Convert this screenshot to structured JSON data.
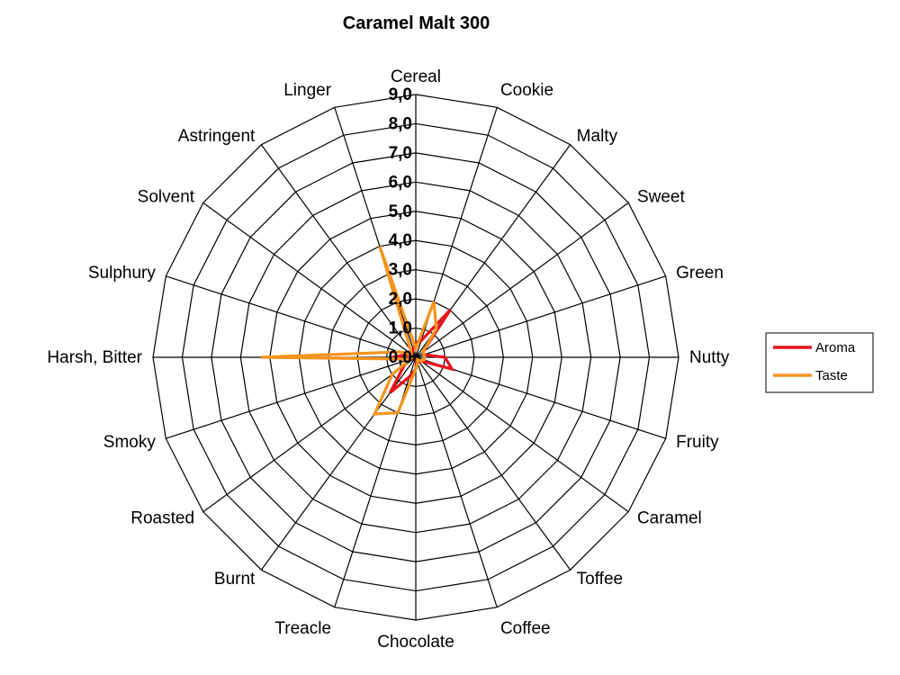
{
  "chart_data": {
    "type": "radar",
    "title": "Caramel Malt 300",
    "categories": [
      "Cereal",
      "Cookie",
      "Malty",
      "Sweet",
      "Green",
      "Nutty",
      "Fruity",
      "Caramel",
      "Toffee",
      "Coffee",
      "Chocolate",
      "Treacle",
      "Burnt",
      "Roasted",
      "Smoky",
      "Harsh, Bitter",
      "Sulphury",
      "Solvent",
      "Astringent",
      "Linger"
    ],
    "tick_labels": [
      "0,0",
      "1,0",
      "2,0",
      "3,0",
      "4,0",
      "5,0",
      "6,0",
      "7,0",
      "8,0",
      "9,0"
    ],
    "rlim": [
      0,
      9
    ],
    "grid": true,
    "legend_position": "right",
    "series": [
      {
        "name": "Aroma",
        "color": "#e8101a",
        "values": [
          0.5,
          0.6,
          2.0,
          0.3,
          0.3,
          1.0,
          1.3,
          0.2,
          0.2,
          0.1,
          0.4,
          0.7,
          1.5,
          0.5,
          0.3,
          0.8,
          0.3,
          0.2,
          0.2,
          0.3
        ]
      },
      {
        "name": "Taste",
        "color": "#f7941d",
        "values": [
          0.3,
          2.0,
          1.2,
          0.3,
          0.3,
          0.3,
          0.3,
          0.2,
          0.1,
          0.2,
          0.4,
          2.0,
          2.4,
          1.0,
          0.2,
          5.3,
          0.6,
          0.2,
          0.3,
          4.0
        ]
      }
    ]
  }
}
